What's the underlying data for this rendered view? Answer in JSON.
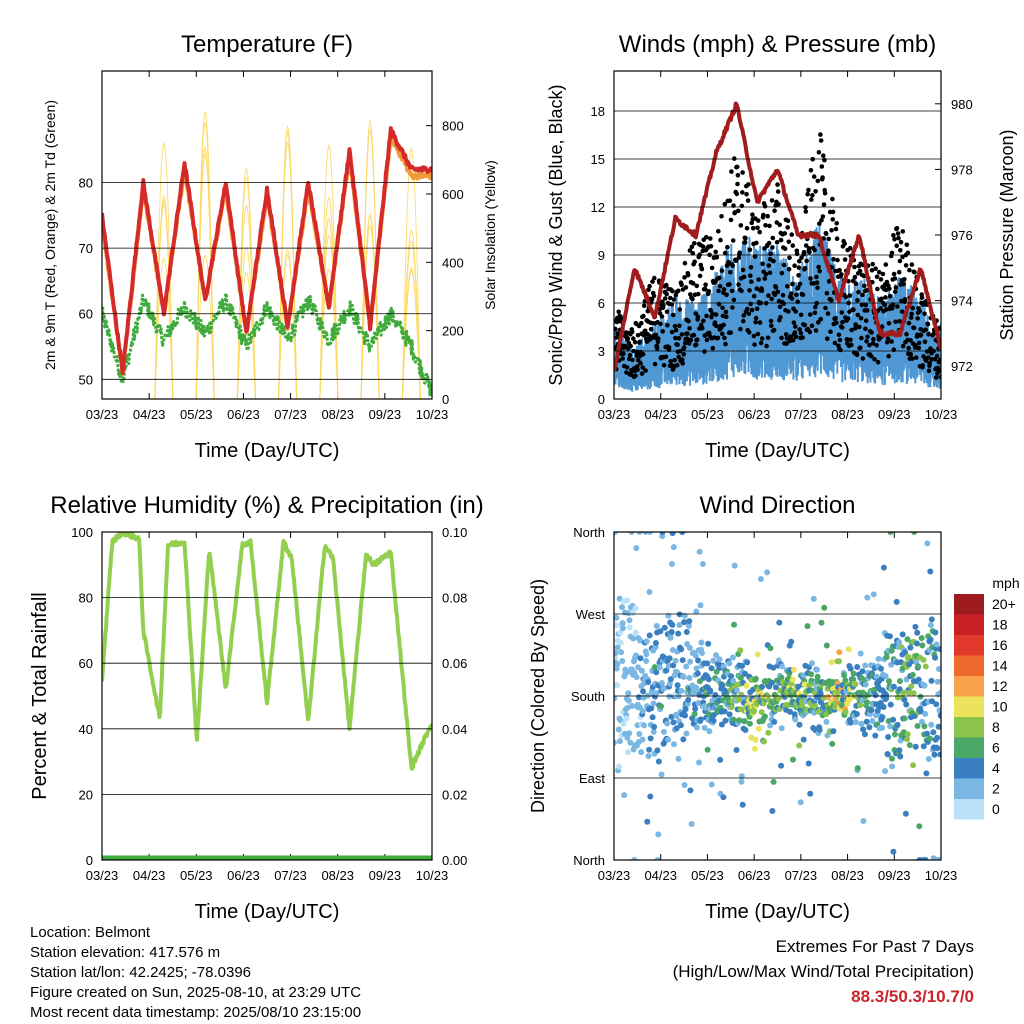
{
  "info": {
    "location": "Location: Belmont",
    "elevation": "Station elevation: 417.576 m",
    "latlon": "Station lat/lon: 42.2425; -78.0396",
    "created": "Figure created on Sun, 2025-08-10, at 23:29 UTC",
    "recent": "Most recent data timestamp: 2025/08/10 23:15:00"
  },
  "extremes": {
    "title": "Extremes For Past 7 Days",
    "subtitle": "(High/Low/Max Wind/Total Precipitation)",
    "values": "88.3/50.3/10.7/0"
  },
  "chart_data": [
    {
      "type": "line",
      "title": "Temperature (F)",
      "xlabel": "Time (Day/UTC)",
      "ylabel": "2m & 9m T (Red, Orange) & 2m Td (Green)",
      "ylabel_right": "Solar Insolation (Yellow)",
      "x_ticks": [
        "03/23",
        "04/23",
        "05/23",
        "06/23",
        "07/23",
        "08/23",
        "09/23",
        "10/23"
      ],
      "ylim": [
        47,
        97
      ],
      "y_ticks": [
        50,
        60,
        70,
        80
      ],
      "ylim_right": [
        0,
        960
      ],
      "y_ticks_right": [
        0,
        200,
        400,
        600,
        800
      ],
      "grid": true,
      "series": [
        {
          "role": "2m T",
          "color": "#d42a2a",
          "x": [
            0,
            0.5,
            1,
            1.5,
            2,
            2.5,
            3,
            3.5,
            4,
            4.5,
            5,
            5.5,
            6,
            6.5,
            7,
            7.5,
            8
          ],
          "values": [
            75,
            51,
            80,
            60,
            83,
            62,
            80,
            57,
            79,
            58,
            80,
            61,
            85,
            58,
            88,
            82,
            82
          ]
        },
        {
          "role": "9m T",
          "color": "#f39a3c",
          "x": [
            0,
            0.5,
            1,
            1.5,
            2,
            2.5,
            3,
            3.5,
            4,
            4.5,
            5,
            5.5,
            6,
            6.5,
            7,
            7.5,
            8
          ],
          "values": [
            74,
            51,
            79,
            60,
            82,
            62,
            79,
            57,
            78,
            58,
            79,
            61,
            84,
            58,
            87,
            81,
            81
          ]
        },
        {
          "role": "2m Td",
          "color": "#3fab3c",
          "x": [
            0,
            0.5,
            1,
            1.5,
            2,
            2.5,
            3,
            3.5,
            4,
            4.5,
            5,
            5.5,
            6,
            6.5,
            7,
            7.5,
            8
          ],
          "values": [
            60,
            50,
            62,
            56,
            61,
            57,
            62,
            55,
            61,
            56,
            62,
            56,
            61,
            55,
            60,
            55,
            48
          ]
        },
        {
          "role": "Solar Insolation",
          "color": "#fbd862",
          "axis": "right",
          "day_peaks": [
            0,
            750,
            910,
            780,
            870,
            900,
            860,
            830
          ]
        }
      ]
    },
    {
      "type": "line",
      "title": "Winds (mph) & Pressure (mb)",
      "xlabel": "Time (Day/UTC)",
      "ylabel": "Sonic/Prop Wind & Gust (Blue, Black)",
      "ylabel_right": "Station Pressure (Maroon)",
      "x_ticks": [
        "03/23",
        "04/23",
        "05/23",
        "06/23",
        "07/23",
        "08/23",
        "09/23",
        "10/23"
      ],
      "ylim": [
        0,
        20.5
      ],
      "y_ticks": [
        0,
        3,
        6,
        9,
        12,
        15,
        18
      ],
      "ylim_right": [
        971,
        981
      ],
      "y_ticks_right": [
        972,
        974,
        976,
        978,
        980
      ],
      "grid": true,
      "series": [
        {
          "role": "Wind",
          "color": "#4f98d4",
          "x": [
            0,
            0.5,
            1,
            1.5,
            2,
            2.5,
            3,
            3.5,
            4,
            4.5,
            5,
            5.5,
            6,
            6.5,
            7,
            7.5,
            8
          ],
          "values": [
            3,
            2,
            3,
            4,
            4,
            5,
            7,
            6,
            6,
            5,
            7,
            5,
            5,
            4,
            5,
            4,
            3
          ]
        },
        {
          "role": "Gust",
          "color": "#000000",
          "x": [
            0,
            0.5,
            1,
            1.5,
            2,
            2.5,
            3,
            3.5,
            4,
            4.5,
            5,
            5.5,
            6,
            6.5,
            7,
            7.5,
            8
          ],
          "values": [
            5,
            4,
            7,
            6,
            9,
            9,
            14,
            10,
            12,
            8,
            15,
            9,
            8,
            7,
            10,
            6,
            4
          ]
        },
        {
          "role": "Pressure",
          "color": "#a11d1d",
          "axis": "right",
          "x": [
            0,
            0.5,
            1,
            1.5,
            2,
            2.5,
            3,
            3.5,
            4,
            4.5,
            5,
            5.5,
            6,
            6.5,
            7,
            7.5,
            8
          ],
          "values": [
            971.8,
            975,
            973.5,
            976.5,
            976,
            978.5,
            980,
            977,
            978,
            976,
            976,
            974,
            976,
            973,
            973,
            975,
            972.5
          ]
        }
      ]
    },
    {
      "type": "line",
      "title": "Relative Humidity (%) & Precipitation (in)",
      "xlabel": "Time (Day/UTC)",
      "ylabel": "Percent & Total Rainfall",
      "x_ticks": [
        "03/23",
        "04/23",
        "05/23",
        "06/23",
        "07/23",
        "08/23",
        "09/23",
        "10/23"
      ],
      "ylim": [
        0,
        100
      ],
      "y_ticks": [
        0,
        20,
        40,
        60,
        80,
        100
      ],
      "ylim_right": [
        0,
        0.1
      ],
      "y_ticks_right": [
        "0.00",
        "0.02",
        "0.04",
        "0.06",
        "0.08",
        "0.10"
      ],
      "grid": true,
      "series": [
        {
          "role": "Relative Humidity",
          "color": "#92cf4e",
          "x": [
            0,
            0.25,
            0.5,
            0.9,
            1.0,
            1.4,
            1.6,
            2.0,
            2.3,
            2.6,
            3.0,
            3.4,
            3.6,
            4.0,
            4.4,
            4.6,
            5.0,
            5.4,
            5.6,
            6.0,
            6.4,
            6.6,
            7.0,
            7.5,
            8.0
          ],
          "values": [
            55,
            97,
            100,
            98,
            70,
            43,
            96,
            97,
            36,
            95,
            52,
            96,
            97,
            48,
            97,
            92,
            42,
            96,
            92,
            40,
            93,
            90,
            94,
            28,
            42
          ]
        },
        {
          "role": "Precipitation",
          "color": "#3fab3c",
          "axis": "right",
          "x": [
            0,
            8
          ],
          "values": [
            0,
            0
          ]
        }
      ]
    },
    {
      "type": "scatter",
      "title": "Wind Direction",
      "xlabel": "Time (Day/UTC)",
      "ylabel": "Direction (Colored By Speed)",
      "x_ticks": [
        "03/23",
        "04/23",
        "05/23",
        "06/23",
        "07/23",
        "08/23",
        "09/23",
        "10/23"
      ],
      "y_ticks": [
        "North",
        "East",
        "South",
        "West",
        "North"
      ],
      "ylim": [
        0,
        360
      ],
      "grid": true,
      "legend": {
        "title": "mph",
        "placement": "right",
        "labels": [
          "20+",
          "18",
          "16",
          "14",
          "12",
          "10",
          "8",
          "6",
          "4",
          "2",
          "0"
        ],
        "colors": [
          "#9e1b1d",
          "#c92126",
          "#e2382b",
          "#ef6a2d",
          "#f9a44a",
          "#eae35b",
          "#8bc34d",
          "#4aa765",
          "#3a7fc0",
          "#7bb7e3",
          "#b9e1f7"
        ]
      },
      "series": [
        {
          "role": "Direction",
          "x": [
            0.5,
            1,
            1.5,
            2,
            2.5,
            3,
            3.5,
            4,
            4.5,
            5,
            5.5,
            6,
            6.5,
            7,
            7.5,
            8
          ],
          "values": [
            200,
            190,
            200,
            185,
            180,
            180,
            175,
            180,
            185,
            178,
            180,
            180,
            175,
            180,
            190,
            185
          ],
          "speeds": [
            2,
            4,
            3,
            4,
            4,
            6,
            8,
            6,
            8,
            6,
            10,
            6,
            4,
            6,
            6,
            3
          ]
        }
      ]
    }
  ]
}
